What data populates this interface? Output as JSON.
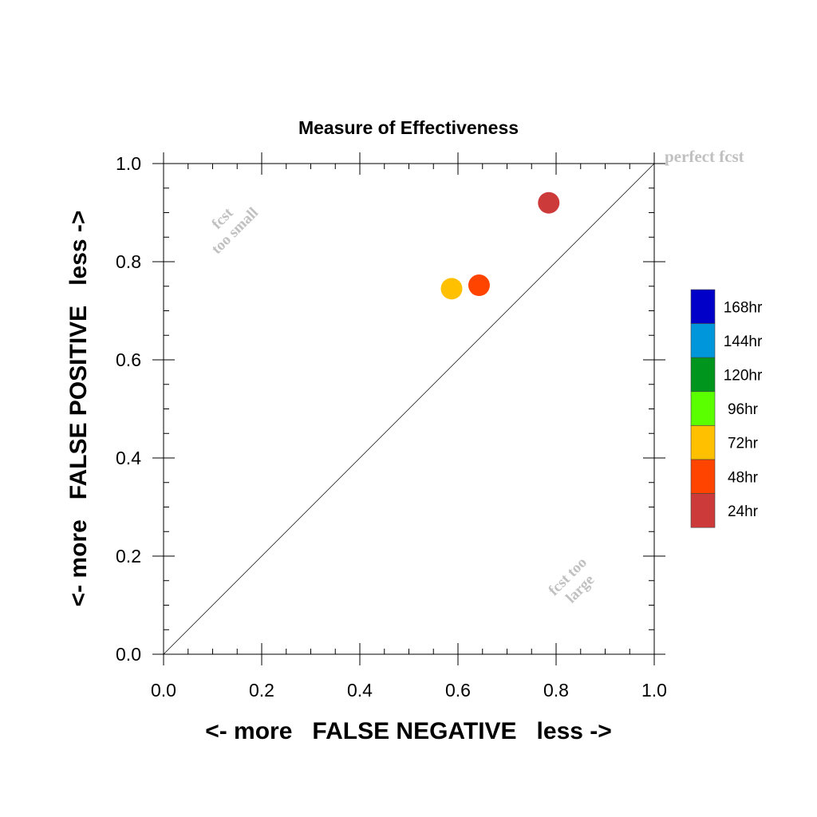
{
  "chart_data": {
    "type": "scatter",
    "title": "Measure of Effectiveness",
    "xlabel": "<- more   FALSE NEGATIVE   less ->",
    "ylabel": "<- more   FALSE POSITIVE   less ->",
    "xlim": [
      0,
      1
    ],
    "ylim": [
      0,
      1
    ],
    "x_ticks": [
      "0.0",
      "0.2",
      "0.4",
      "0.6",
      "0.8",
      "1.0"
    ],
    "y_ticks": [
      "0.0",
      "0.2",
      "0.4",
      "0.6",
      "0.8",
      "1.0"
    ],
    "grid": false,
    "points": [
      {
        "label": "24hr",
        "x": 0.785,
        "y": 0.92,
        "color": "#cc3a3a"
      },
      {
        "label": "48hr",
        "x": 0.643,
        "y": 0.752,
        "color": "#ff4400"
      },
      {
        "label": "72hr",
        "x": 0.587,
        "y": 0.745,
        "color": "#ffc000"
      }
    ],
    "reference_line": {
      "from": [
        0,
        0
      ],
      "to": [
        1,
        1
      ]
    },
    "annotations": {
      "perfect": "perfect fcst",
      "small_line1": "fcst",
      "small_line2": "too small",
      "large_line1": "fcst too",
      "large_line2": "large"
    },
    "legend": {
      "placement": "right",
      "items": [
        {
          "label": "168hr",
          "color": "#0000c8"
        },
        {
          "label": "144hr",
          "color": "#0096dc"
        },
        {
          "label": "120hr",
          "color": "#00961e"
        },
        {
          "label": "96hr",
          "color": "#5aff00"
        },
        {
          "label": "72hr",
          "color": "#ffc000"
        },
        {
          "label": "48hr",
          "color": "#ff4400"
        },
        {
          "label": "24hr",
          "color": "#cc3a3a"
        }
      ]
    }
  }
}
